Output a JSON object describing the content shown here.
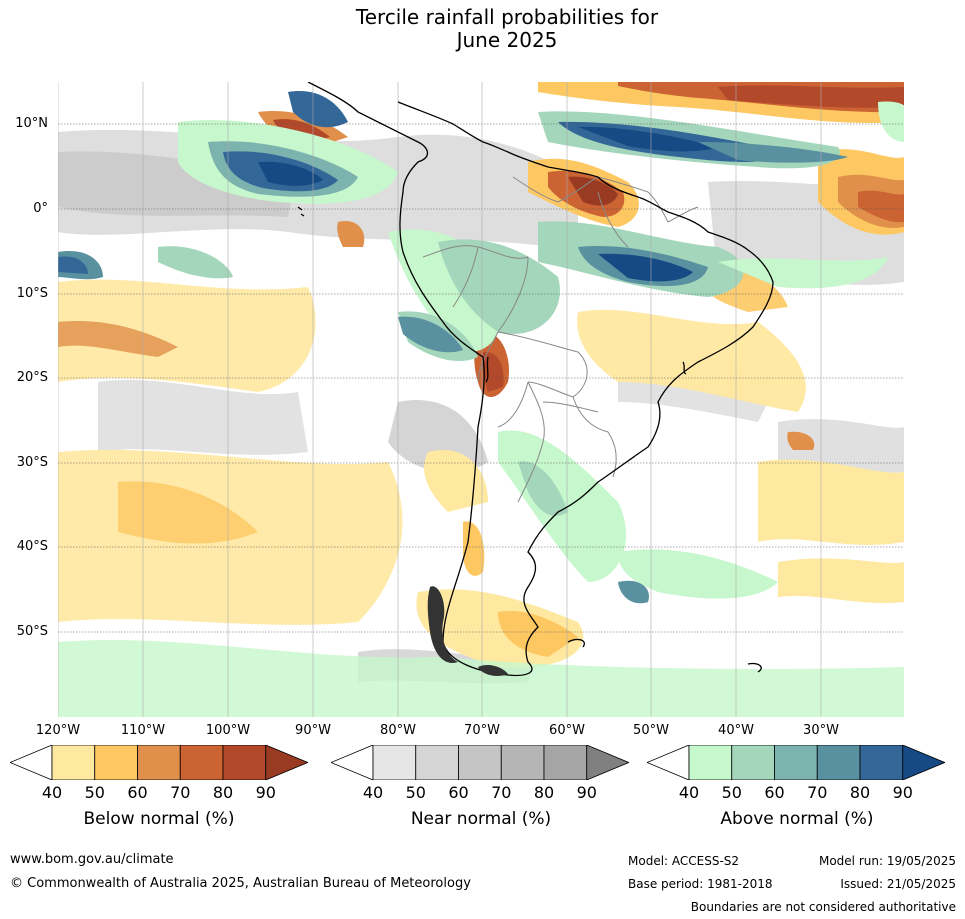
{
  "title": {
    "line1": "Tercile rainfall probabilities for",
    "line2": "June 2025"
  },
  "map": {
    "lat_labels": [
      "10°N",
      "0°",
      "10°S",
      "20°S",
      "30°S",
      "40°S",
      "50°S"
    ],
    "lon_labels": [
      "120°W",
      "110°W",
      "100°W",
      "90°W",
      "80°W",
      "70°W",
      "60°W",
      "50°W",
      "40°W",
      "30°W"
    ]
  },
  "colorbars": [
    {
      "title": "Below normal (%)",
      "ticks": [
        "40",
        "50",
        "60",
        "70",
        "80",
        "90"
      ],
      "colors": [
        "#ffffff",
        "#ffe8a0",
        "#fdc862",
        "#e0904a",
        "#cb6332",
        "#b2492a",
        "#993a22"
      ]
    },
    {
      "title": "Near normal (%)",
      "ticks": [
        "40",
        "50",
        "60",
        "70",
        "80",
        "90"
      ],
      "colors": [
        "#ffffff",
        "#e6e6e6",
        "#d5d5d5",
        "#c5c5c5",
        "#b5b5b5",
        "#a5a5a5",
        "#808080"
      ]
    },
    {
      "title": "Above normal (%)",
      "ticks": [
        "40",
        "50",
        "60",
        "70",
        "80",
        "90"
      ],
      "colors": [
        "#ffffff",
        "#c7f7cc",
        "#a3d6bb",
        "#7db3ae",
        "#5a91a0",
        "#336798",
        "#154a85"
      ]
    }
  ],
  "footer": {
    "website": "www.bom.gov.au/climate",
    "copyright": "© Commonwealth of Australia 2025, Australian Bureau of Meteorology",
    "model": "Model: ACCESS-S2",
    "base_period": "Base period: 1981-2018",
    "model_run": "Model run: 19/05/2025",
    "issued": "Issued: 21/05/2025",
    "disclaimer": "Boundaries are not considered authoritative"
  }
}
